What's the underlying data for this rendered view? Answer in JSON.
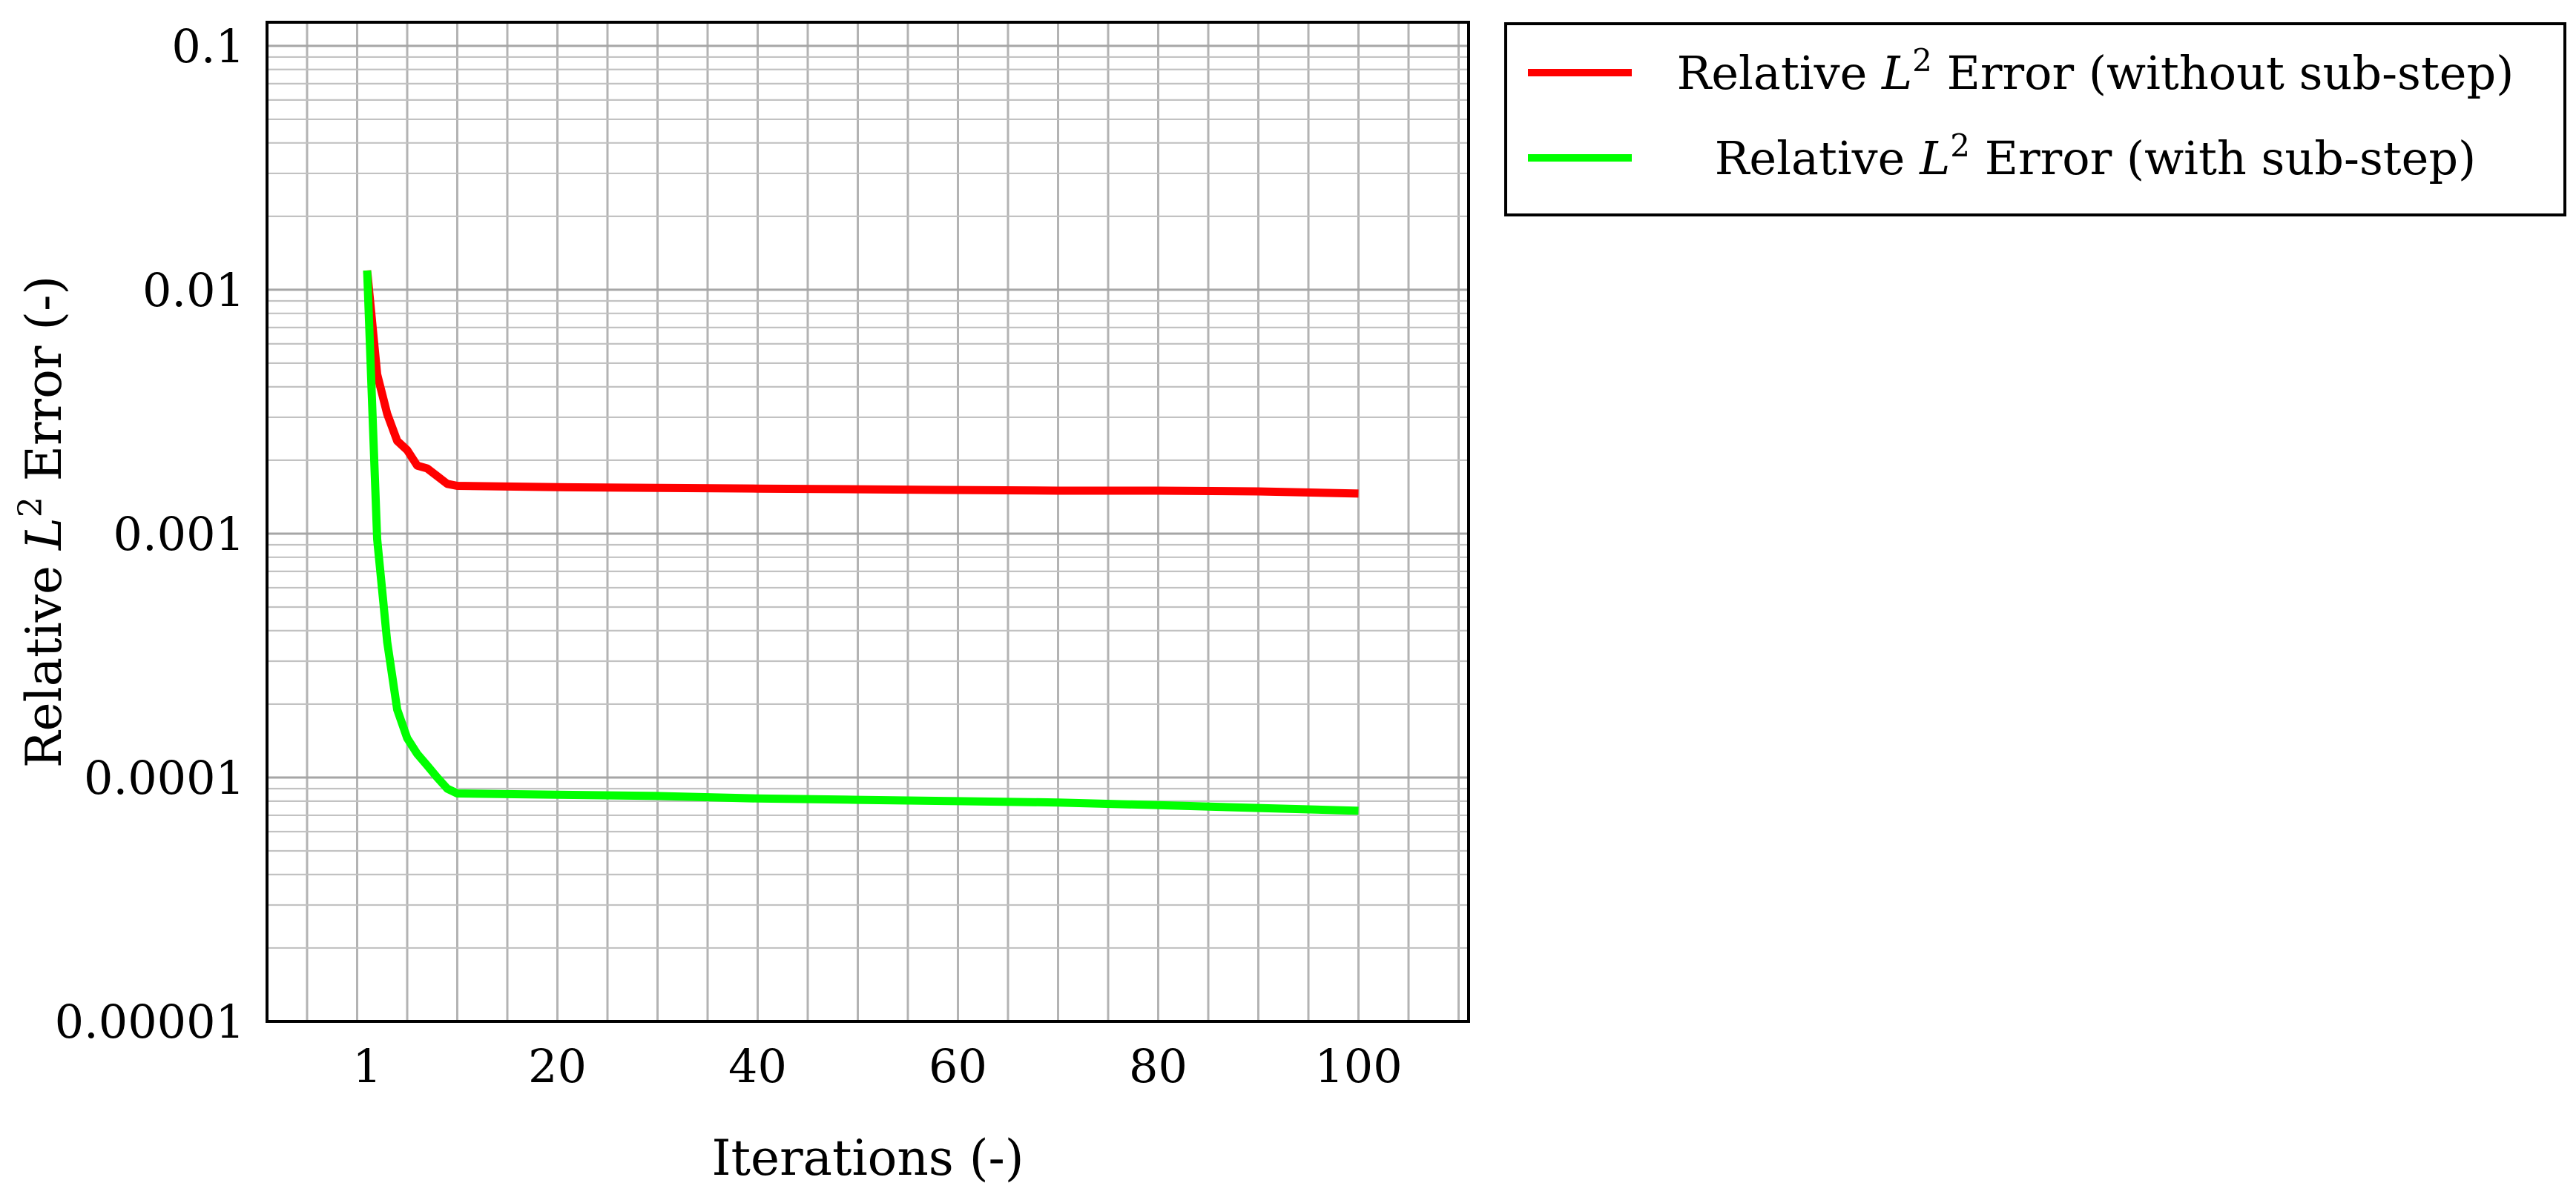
{
  "chart_data": {
    "type": "line",
    "title": "",
    "xlabel": "Iterations (-)",
    "ylabel": "Relative L² Error (-)",
    "ylabel_parts": {
      "prefix": "Relative ",
      "var": "L",
      "sup": "2",
      "suffix": " Error (-)"
    },
    "y_scale": "log",
    "xlim": [
      -9,
      111
    ],
    "ylim": [
      1e-05,
      0.125
    ],
    "x_ticks": [
      1,
      20,
      40,
      60,
      80,
      100
    ],
    "x_tick_labels": [
      "1",
      "20",
      "40",
      "60",
      "80",
      "100"
    ],
    "y_ticks": [
      1e-05,
      0.0001,
      0.001,
      0.01,
      0.1
    ],
    "y_tick_labels": [
      "0.00001",
      "0.0001",
      "0.001",
      "0.01",
      "0.1"
    ],
    "grid": true,
    "legend_position": "outside-right-top",
    "series": [
      {
        "name": "Relative L² Error (without sub-step)",
        "name_parts": {
          "prefix": "Relative ",
          "var": "L",
          "sup": "2",
          "suffix": " Error (without sub-step)"
        },
        "color": "#ff0000",
        "x": [
          1,
          2,
          3,
          4,
          5,
          6,
          7,
          8,
          9,
          10,
          20,
          30,
          40,
          50,
          60,
          70,
          80,
          90,
          100
        ],
        "y": [
          0.012,
          0.0045,
          0.0031,
          0.0024,
          0.0022,
          0.0019,
          0.00185,
          0.00172,
          0.0016,
          0.00157,
          0.00155,
          0.00154,
          0.00153,
          0.00152,
          0.00151,
          0.0015,
          0.0015,
          0.00149,
          0.00146
        ]
      },
      {
        "name": "Relative L² Error (with sub-step)",
        "name_parts": {
          "prefix": "Relative ",
          "var": "L",
          "sup": "2",
          "suffix": " Error (with sub-step)"
        },
        "color": "#00ff00",
        "x": [
          1,
          2,
          3,
          4,
          5,
          6,
          7,
          8,
          9,
          10,
          20,
          30,
          40,
          50,
          60,
          70,
          80,
          90,
          100
        ],
        "y": [
          0.012,
          0.00095,
          0.00036,
          0.00019,
          0.000145,
          0.000125,
          0.000112,
          0.0001,
          9e-05,
          8.6e-05,
          8.5e-05,
          8.4e-05,
          8.2e-05,
          8.1e-05,
          8e-05,
          7.9e-05,
          7.7e-05,
          7.5e-05,
          7.3e-05
        ]
      }
    ]
  }
}
